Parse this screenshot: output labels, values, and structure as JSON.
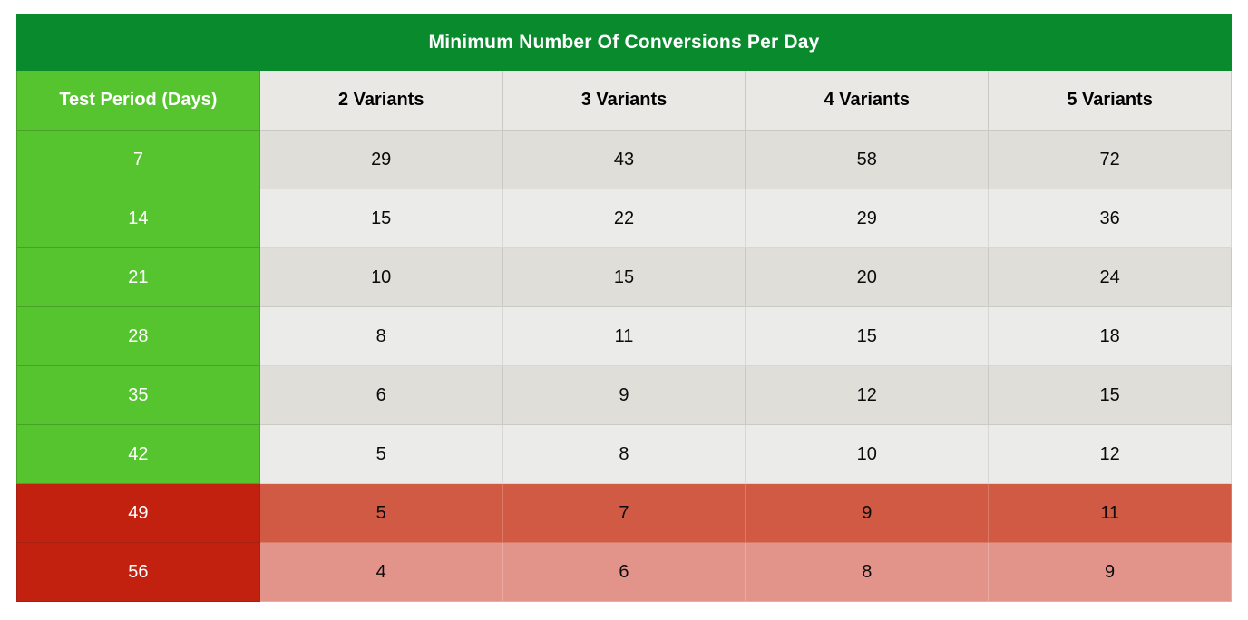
{
  "title": "Minimum Number Of Conversions Per Day",
  "columns": {
    "period": "Test Period (Days)",
    "variants": [
      "2 Variants",
      "3 Variants",
      "4 Variants",
      "5 Variants"
    ]
  },
  "rows": [
    {
      "period": "7",
      "v": [
        "29",
        "43",
        "58",
        "72"
      ],
      "zone": "green"
    },
    {
      "period": "14",
      "v": [
        "15",
        "22",
        "29",
        "36"
      ],
      "zone": "green"
    },
    {
      "period": "21",
      "v": [
        "10",
        "15",
        "20",
        "24"
      ],
      "zone": "green"
    },
    {
      "period": "28",
      "v": [
        "8",
        "11",
        "15",
        "18"
      ],
      "zone": "green"
    },
    {
      "period": "35",
      "v": [
        "6",
        "9",
        "12",
        "15"
      ],
      "zone": "green"
    },
    {
      "period": "42",
      "v": [
        "5",
        "8",
        "10",
        "12"
      ],
      "zone": "green"
    },
    {
      "period": "49",
      "v": [
        "5",
        "7",
        "9",
        "11"
      ],
      "zone": "red"
    },
    {
      "period": "56",
      "v": [
        "4",
        "6",
        "8",
        "9"
      ],
      "zone": "red"
    }
  ],
  "colors": {
    "title_bg": "#088A2D",
    "period_green": "#55C42F",
    "period_red": "#C22110",
    "header_gray": "#E9E8E4",
    "cell_gray_dark": "#E0DED9",
    "cell_gray_light": "#EBEBEA",
    "cell_red_dark": "#D05A43",
    "cell_red_light": "#E2938A",
    "title_text": "#FFFFFF",
    "data_text": "#0B0B0B"
  },
  "chart_data": {
    "type": "table",
    "title": "Minimum Number Of Conversions Per Day",
    "row_label": "Test Period (Days)",
    "columns": [
      "2 Variants",
      "3 Variants",
      "4 Variants",
      "5 Variants"
    ],
    "test_period_days": [
      7,
      14,
      21,
      28,
      35,
      42,
      49,
      56
    ],
    "values": [
      [
        29,
        43,
        58,
        72
      ],
      [
        15,
        22,
        29,
        36
      ],
      [
        10,
        15,
        20,
        24
      ],
      [
        8,
        11,
        15,
        18
      ],
      [
        6,
        9,
        12,
        15
      ],
      [
        5,
        8,
        10,
        12
      ],
      [
        5,
        7,
        9,
        11
      ],
      [
        4,
        6,
        8,
        9
      ]
    ],
    "row_zones": [
      "green",
      "green",
      "green",
      "green",
      "green",
      "green",
      "red",
      "red"
    ]
  }
}
